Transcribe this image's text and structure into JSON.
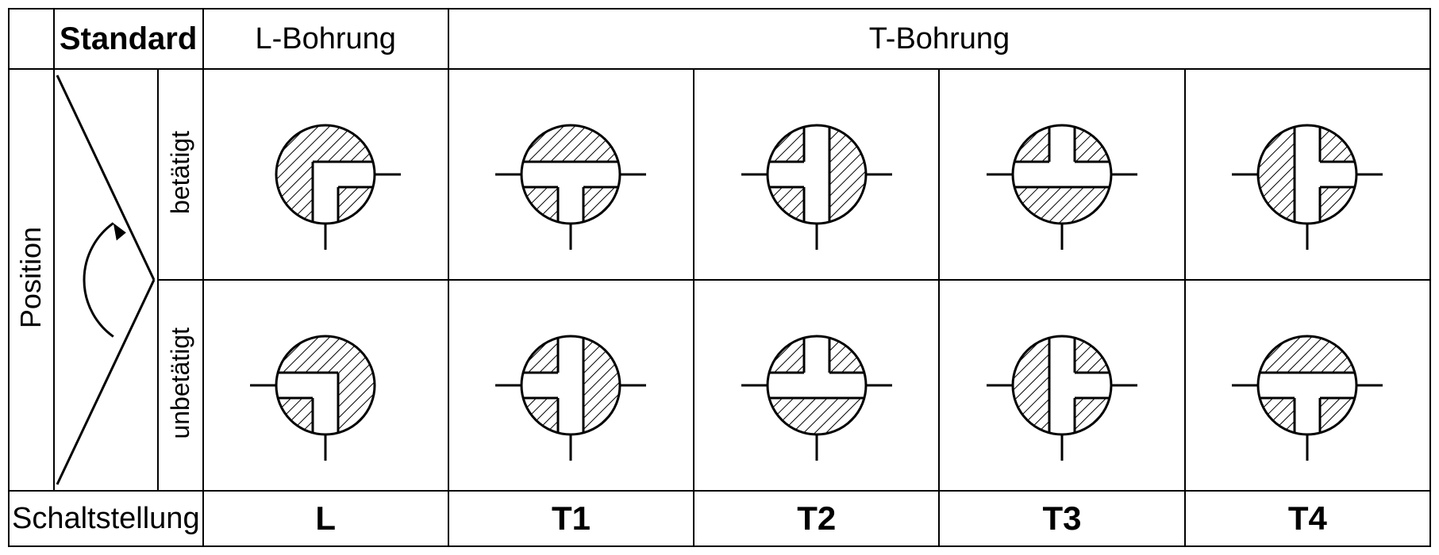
{
  "labels": {
    "position": "Position",
    "standard": "Standard",
    "l_bohrung": "L-Bohrung",
    "t_bohrung": "T-Bohrung",
    "betatigt": "betätigt",
    "unbetatigt": "unbetätigt",
    "schaltstellung": "Schaltstellung"
  },
  "columns": [
    "L",
    "T1",
    "T2",
    "T3",
    "T4"
  ],
  "fonts": {
    "header": 38,
    "header_bold": 40,
    "side": 36,
    "sub": 32,
    "footer": 38,
    "footer_bold": 42
  },
  "colors": {
    "stroke": "#000000",
    "fill": "#ffffff",
    "hatch_stroke": "#000000"
  },
  "symbol": {
    "radius": 62,
    "channel_width": 32,
    "port_len": 95,
    "stroke_width": 3,
    "hatch_spacing": 10
  },
  "cells": {
    "row0": [
      {
        "ports": "RB",
        "channel": "RB"
      },
      {
        "ports": "LRB",
        "channel": "LRB"
      },
      {
        "ports": "LRB",
        "channel": "LTB"
      },
      {
        "ports": "LRB",
        "channel": "TLR"
      },
      {
        "ports": "LRB",
        "channel": "TRB"
      }
    ],
    "row1": [
      {
        "ports": "LB",
        "channel": "LB"
      },
      {
        "ports": "LRB",
        "channel": "LTB"
      },
      {
        "ports": "LRB",
        "channel": "TLR"
      },
      {
        "ports": "LRB",
        "channel": "TRB"
      },
      {
        "ports": "LRB",
        "channel": "LRB"
      }
    ]
  }
}
